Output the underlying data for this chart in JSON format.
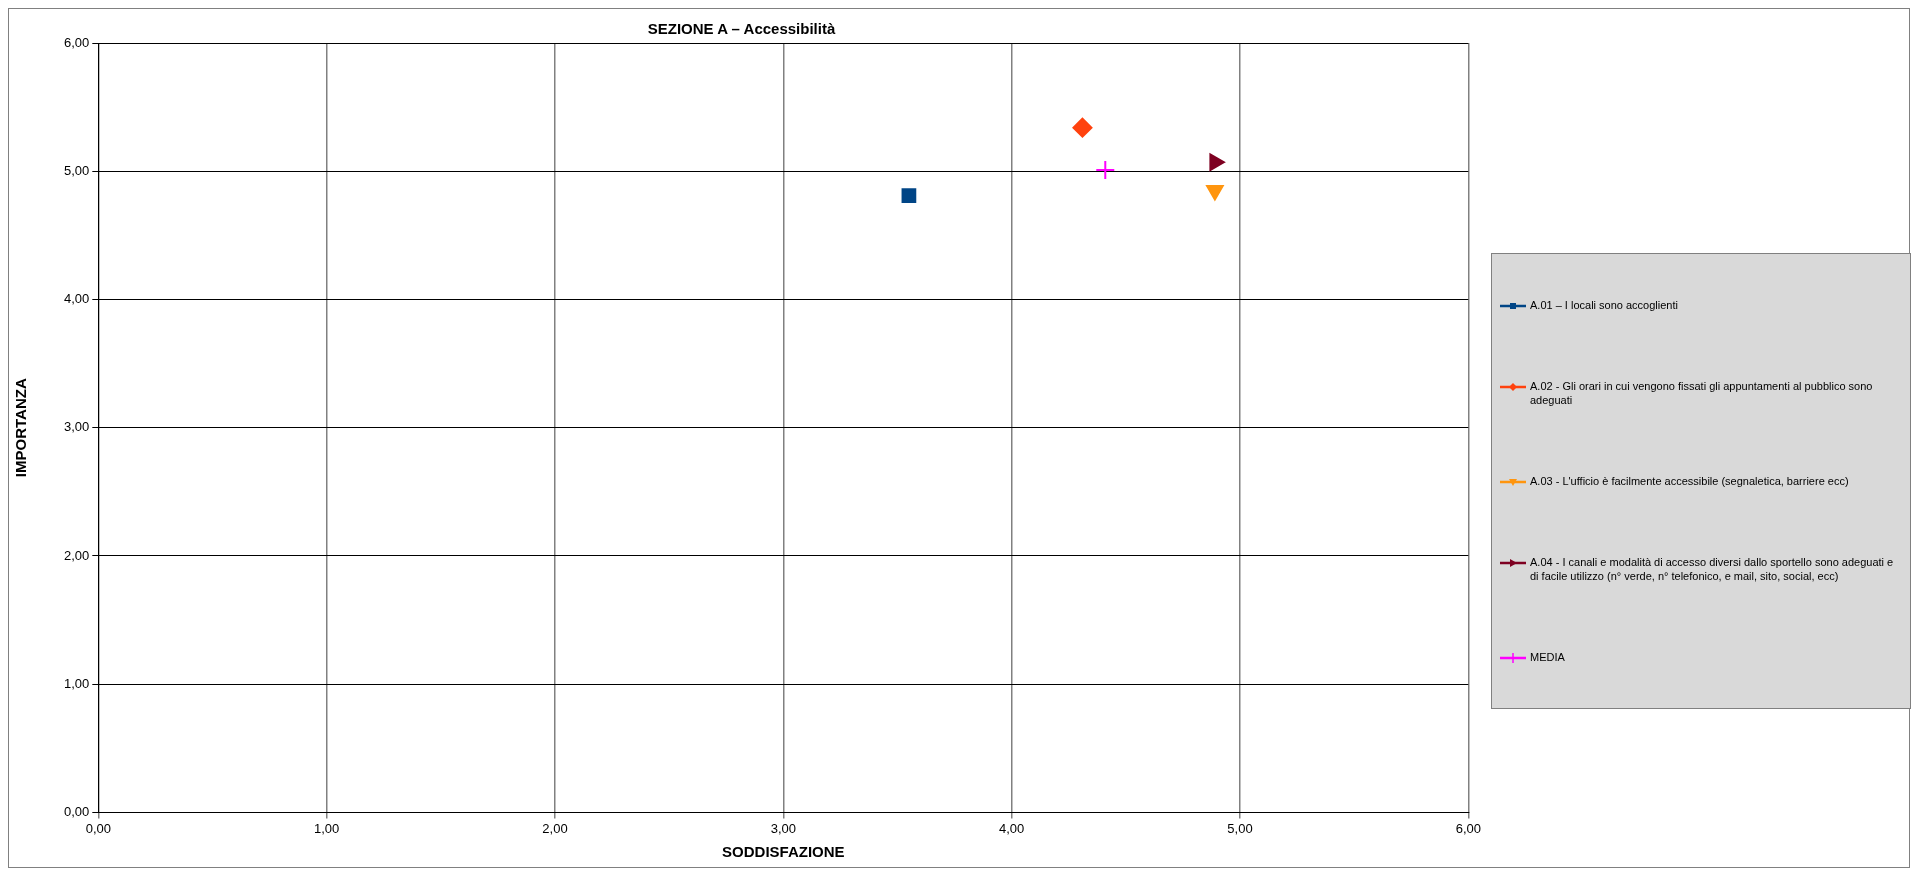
{
  "chart_data": {
    "type": "scatter",
    "title": "SEZIONE A – Accessibilità",
    "xlabel": "SODDISFAZIONE",
    "ylabel": "IMPORTANZA",
    "xlim": [
      0,
      6
    ],
    "ylim": [
      0,
      6
    ],
    "xticks": [
      {
        "value": 0,
        "label": "0,00"
      },
      {
        "value": 1,
        "label": "1,00"
      },
      {
        "value": 2,
        "label": "2,00"
      },
      {
        "value": 3,
        "label": "3,00"
      },
      {
        "value": 4,
        "label": "4,00"
      },
      {
        "value": 5,
        "label": "5,00"
      },
      {
        "value": 6,
        "label": "6,00"
      }
    ],
    "yticks": [
      {
        "value": 0,
        "label": "0,00"
      },
      {
        "value": 1,
        "label": "1,00"
      },
      {
        "value": 2,
        "label": "2,00"
      },
      {
        "value": 3,
        "label": "3,00"
      },
      {
        "value": 4,
        "label": "4,00"
      },
      {
        "value": 5,
        "label": "5,00"
      },
      {
        "value": 6,
        "label": "6,00"
      }
    ],
    "grid": true,
    "legend": "right",
    "series": [
      {
        "name": "A.01 – I locali sono accoglienti",
        "color": "#004586",
        "marker": "square",
        "x": [
          3.55
        ],
        "values": [
          4.81
        ]
      },
      {
        "name": "A.02 -  Gli orari in cui vengono fissati gli appuntamenti al pubblico sono adeguati",
        "color": "#ff420e",
        "marker": "diamond",
        "x": [
          4.31
        ],
        "values": [
          5.34
        ]
      },
      {
        "name": "A.03 -  L'ufficio è facilmente accessibile (segnaletica, barriere ecc)",
        "color": "#ff950e",
        "marker": "triangle-down",
        "x": [
          4.89
        ],
        "values": [
          4.85
        ]
      },
      {
        "name": "A.04 -  I canali e modalità di accesso diversi dallo sportello sono adeguati e di facile utilizzo (n° verde, n° telefonico, e mail, sito, social, ecc)",
        "color": "#7e0021",
        "marker": "triangle-right",
        "x": [
          4.89
        ],
        "values": [
          5.07
        ]
      },
      {
        "name": "MEDIA",
        "color": "#ff00ff",
        "marker": "cross",
        "x": [
          4.41
        ],
        "values": [
          5.01
        ]
      }
    ]
  }
}
